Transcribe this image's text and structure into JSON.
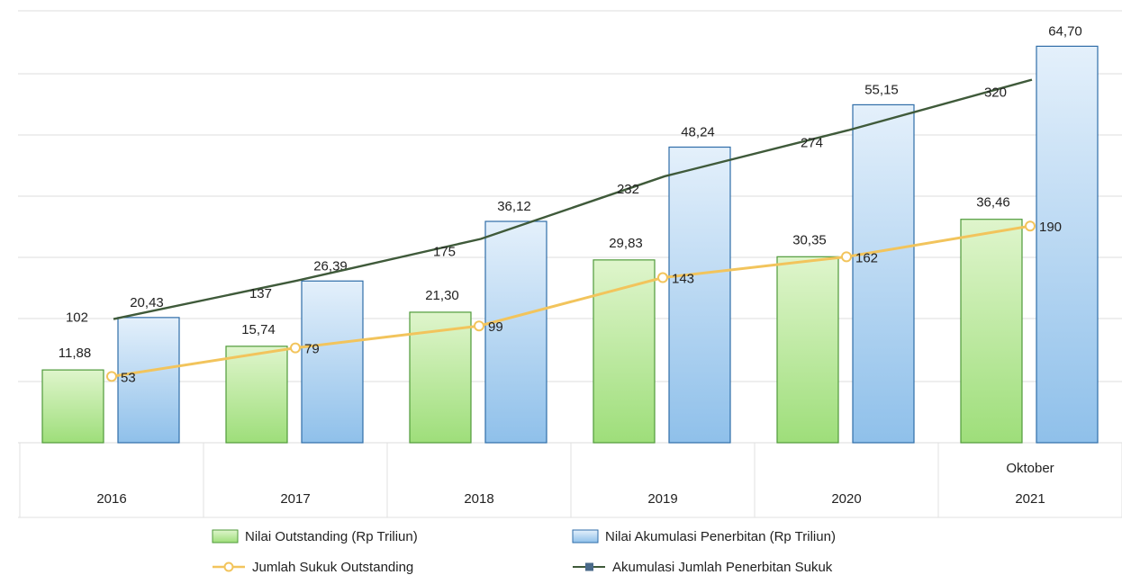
{
  "chart_data": {
    "type": "bar",
    "categories": [
      "2016",
      "2017",
      "2018",
      "2019",
      "2020",
      "2021"
    ],
    "category_sublabels": [
      "",
      "",
      "",
      "",
      "",
      "Oktober"
    ],
    "ylim": [
      0,
      70
    ],
    "grid": true,
    "legend_position": "bottom",
    "series": [
      {
        "name": "Nilai Outstanding (Rp Triliun)",
        "kind": "bar",
        "values": [
          11.88,
          15.74,
          21.3,
          29.83,
          30.35,
          36.46
        ],
        "value_labels": [
          "11,88",
          "15,74",
          "21,30",
          "29,83",
          "30,35",
          "36,46"
        ],
        "color": "#9ede7a"
      },
      {
        "name": "Nilai Akumulasi Penerbitan (Rp Triliun)",
        "kind": "bar",
        "values": [
          20.43,
          26.39,
          36.12,
          48.24,
          55.15,
          64.7
        ],
        "value_labels": [
          "20,43",
          "26,39",
          "36,12",
          "48,24",
          "55,15",
          "64,70"
        ],
        "color": "#8fc0ea"
      },
      {
        "name": "Jumlah Sukuk Outstanding",
        "kind": "line",
        "values": [
          53,
          79,
          99,
          143,
          162,
          190
        ],
        "value_labels": [
          "53",
          "79",
          "99",
          "143",
          "162",
          "190"
        ],
        "color": "#f2c45c"
      },
      {
        "name": "Akumulasi Jumlah Penerbitan Sukuk",
        "kind": "line",
        "values": [
          102,
          137,
          175,
          232,
          274,
          320
        ],
        "value_labels": [
          "102",
          "137",
          "175",
          "232",
          "274",
          "320"
        ],
        "color": "#3f5a3a"
      }
    ]
  }
}
